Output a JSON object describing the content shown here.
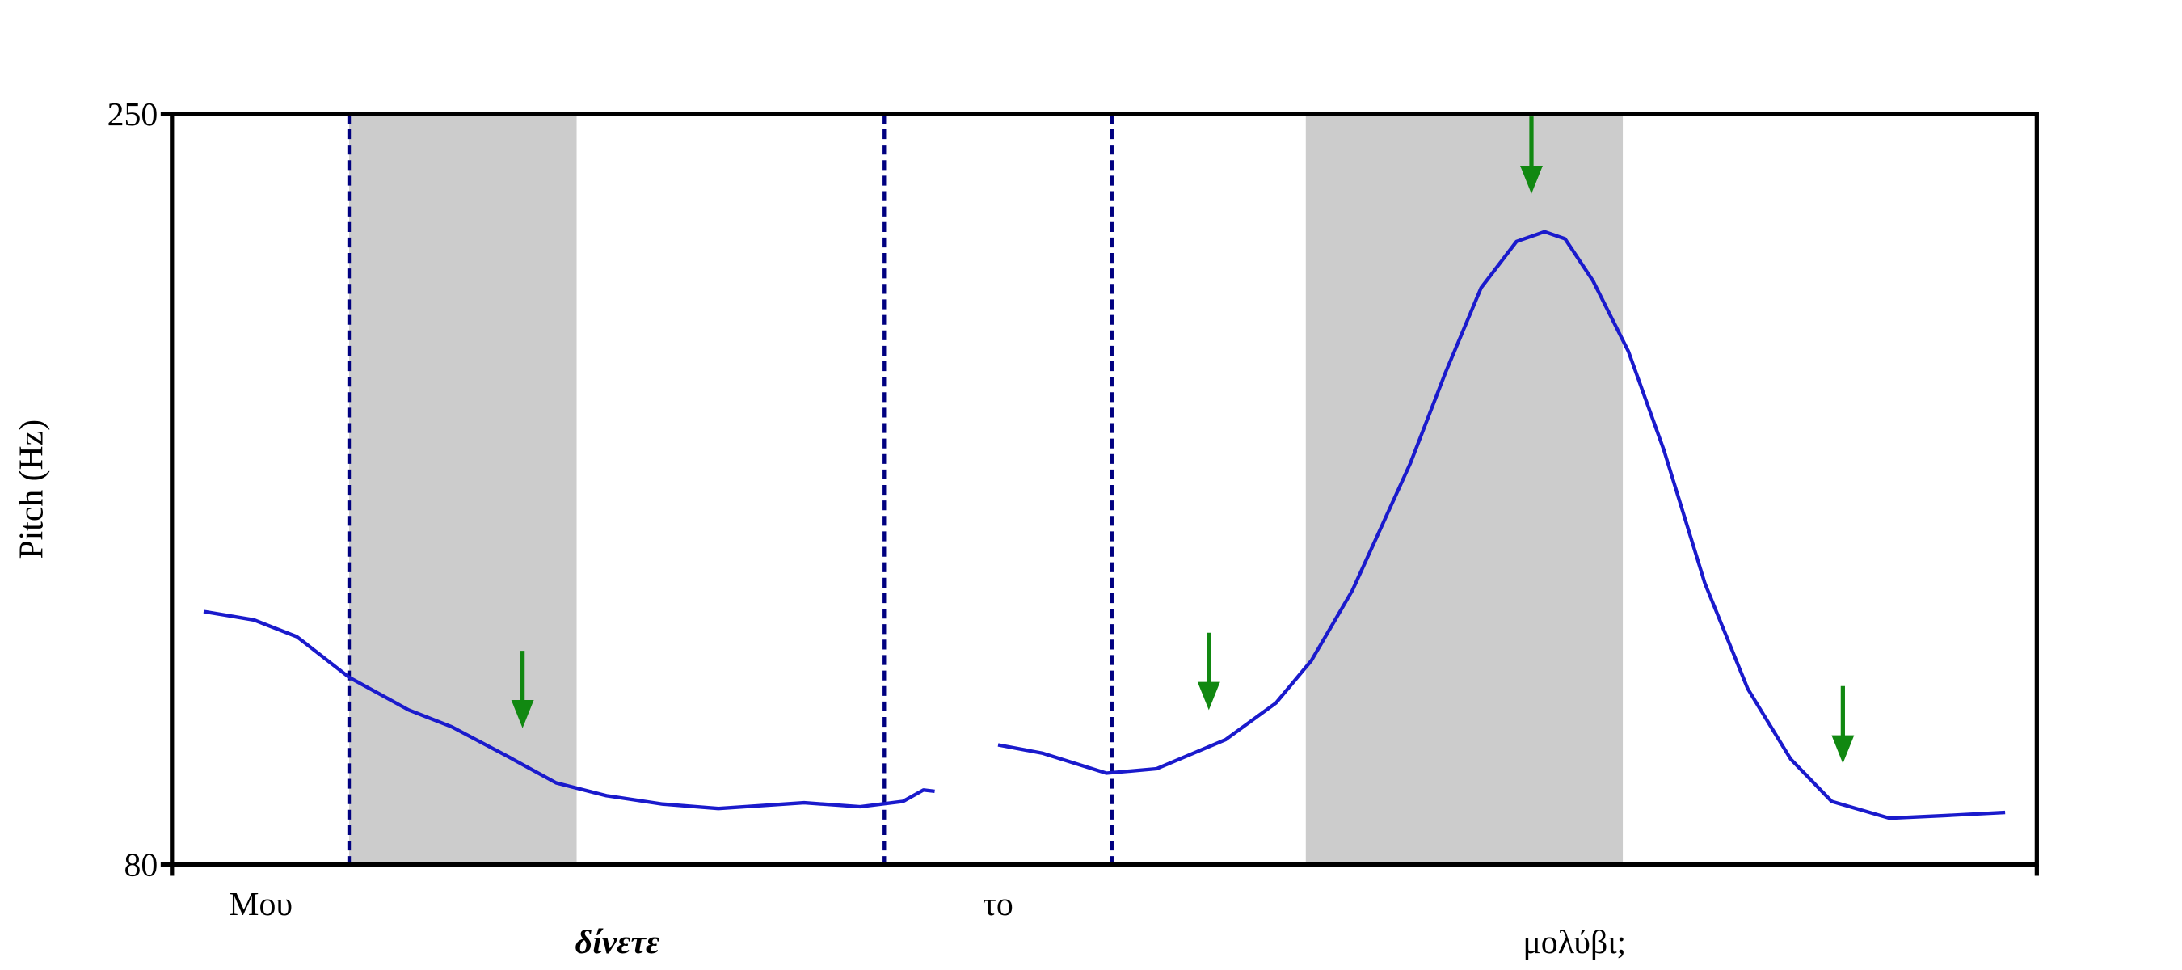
{
  "chart_data": {
    "type": "line",
    "ylabel": "Pitch (Hz)",
    "ylim": [
      80,
      250
    ],
    "yticks": [
      80,
      250
    ],
    "xlim": [
      0,
      100
    ],
    "words": [
      "Μου",
      "δίνετε",
      "το",
      "μολύβι;"
    ],
    "x": [
      1.7,
      4.4,
      6.7,
      9.5,
      12.7,
      15.0,
      18.0,
      20.6,
      23.3,
      26.3,
      29.3,
      33.9,
      36.9,
      39.2,
      40.3,
      40.9,
      42.6,
      44.3,
      46.7,
      50.1,
      52.8,
      56.5,
      59.2,
      61.1,
      63.3,
      66.4,
      68.3,
      70.2,
      72.1,
      73.6,
      74.7,
      76.2,
      78.1,
      80.0,
      82.2,
      84.5,
      86.8,
      89.0,
      92.1,
      95.1,
      98.3
    ],
    "series": [
      {
        "color": "#1a1acc",
        "values": [
          137.3,
          135.4,
          131.6,
          122.4,
          115,
          111.2,
          104.5,
          98.5,
          95.6,
          93.7,
          92.7,
          94.0,
          93.1,
          94.3,
          96.9,
          96.6,
          null,
          107.1,
          105.2,
          100.7,
          101.7,
          108.3,
          116.6,
          126.2,
          142.1,
          170.8,
          191.5,
          210.6,
          221.1,
          223.3,
          221.7,
          212.2,
          196.2,
          173.9,
          143.7,
          119.8,
          103.9,
          94.3,
          90.5,
          91.1,
          91.8
        ]
      }
    ],
    "regions": [
      [
        9.5,
        21.7
      ],
      [
        60.8,
        77.8
      ]
    ],
    "region_color": "#cccccc",
    "boundaries": [
      9.5,
      38.2,
      50.4
    ],
    "boundary_color": "#000080",
    "arrows": [
      {
        "x": 18.8,
        "y": 110.9
      },
      {
        "x": 55.6,
        "y": 115
      },
      {
        "x": 72.9,
        "y": 231.9
      },
      {
        "x": 89.6,
        "y": 102.9
      }
    ],
    "arrow_color": "#118811"
  }
}
